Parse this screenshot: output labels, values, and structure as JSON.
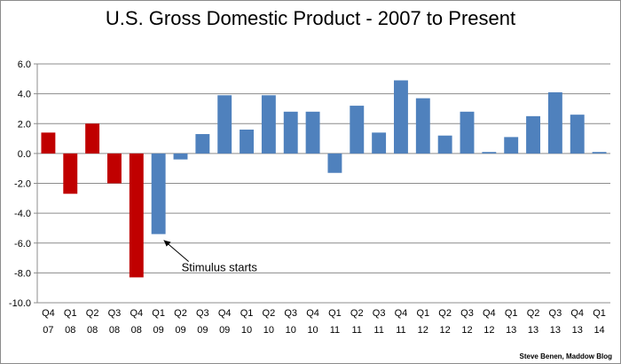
{
  "chart_data": {
    "type": "bar",
    "title": "U.S. Gross Domestic Product - 2007 to Present",
    "xlabel": "",
    "ylabel": "",
    "ylim": [
      -10,
      6
    ],
    "yticks": [
      6.0,
      4.0,
      2.0,
      0.0,
      -2.0,
      -4.0,
      -6.0,
      -8.0,
      -10.0
    ],
    "ytick_labels": [
      "6.0",
      "4.0",
      "2.0",
      "0.0",
      "-2.0",
      "-4.0",
      "-6.0",
      "-8.0",
      "-10.0"
    ],
    "grid": true,
    "categories": [
      [
        "Q4",
        "07"
      ],
      [
        "Q1",
        "08"
      ],
      [
        "Q2",
        "08"
      ],
      [
        "Q3",
        "08"
      ],
      [
        "Q4",
        "08"
      ],
      [
        "Q1",
        "09"
      ],
      [
        "Q2",
        "09"
      ],
      [
        "Q3",
        "09"
      ],
      [
        "Q4",
        "09"
      ],
      [
        "Q1",
        "10"
      ],
      [
        "Q2",
        "10"
      ],
      [
        "Q3",
        "10"
      ],
      [
        "Q4",
        "10"
      ],
      [
        "Q1",
        "11"
      ],
      [
        "Q2",
        "11"
      ],
      [
        "Q3",
        "11"
      ],
      [
        "Q4",
        "11"
      ],
      [
        "Q1",
        "12"
      ],
      [
        "Q2",
        "12"
      ],
      [
        "Q3",
        "12"
      ],
      [
        "Q4",
        "12"
      ],
      [
        "Q1",
        "13"
      ],
      [
        "Q2",
        "13"
      ],
      [
        "Q3",
        "13"
      ],
      [
        "Q4",
        "13"
      ],
      [
        "Q1",
        "14"
      ]
    ],
    "values": [
      1.4,
      -2.7,
      2.0,
      -2.0,
      -8.3,
      -5.4,
      -0.4,
      1.3,
      3.9,
      1.6,
      3.9,
      2.8,
      2.8,
      -1.3,
      3.2,
      1.4,
      4.9,
      3.7,
      1.2,
      2.8,
      0.1,
      1.1,
      2.5,
      4.1,
      2.6,
      0.1
    ],
    "bar_colors": [
      "#c00000",
      "#c00000",
      "#c00000",
      "#c00000",
      "#c00000",
      "#4f81bd",
      "#4f81bd",
      "#4f81bd",
      "#4f81bd",
      "#4f81bd",
      "#4f81bd",
      "#4f81bd",
      "#4f81bd",
      "#4f81bd",
      "#4f81bd",
      "#4f81bd",
      "#4f81bd",
      "#4f81bd",
      "#4f81bd",
      "#4f81bd",
      "#4f81bd",
      "#4f81bd",
      "#4f81bd",
      "#4f81bd",
      "#4f81bd",
      "#4f81bd"
    ],
    "annotation": {
      "text": "Stimulus starts",
      "target_index": 5,
      "target_value": -5.4
    },
    "credit": "Steve Benen, Maddow Blog"
  }
}
